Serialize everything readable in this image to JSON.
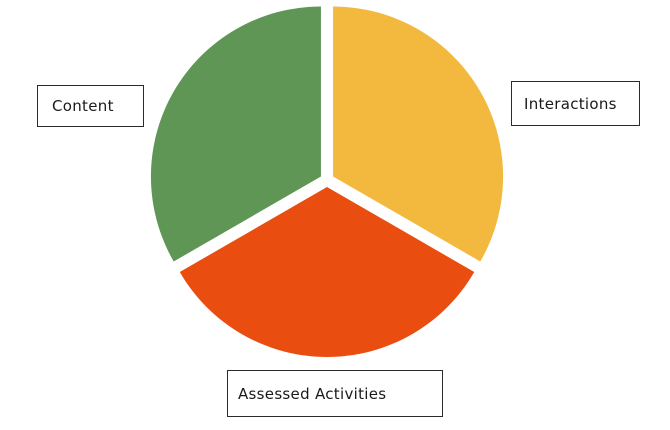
{
  "segments": [
    {
      "label": "Content",
      "color": "#5f9655"
    },
    {
      "label": "Interactions",
      "color": "#f3b93f"
    },
    {
      "label": "Assessed Activities",
      "color": "#e94d10"
    }
  ]
}
